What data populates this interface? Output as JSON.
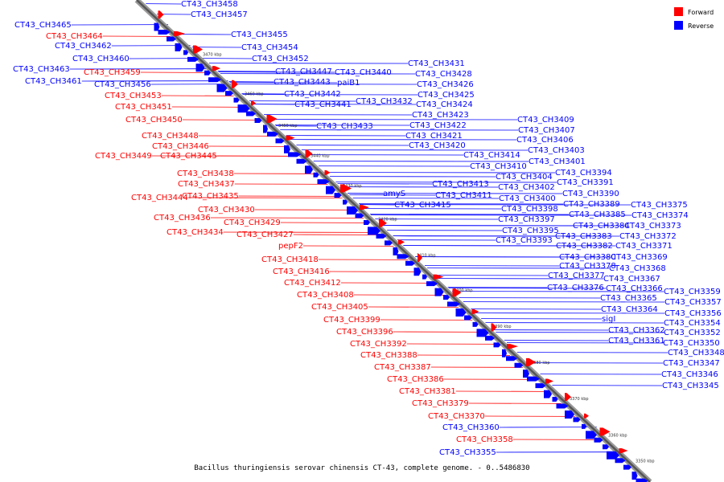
{
  "legend": [
    {
      "label": "Forward",
      "color": "#ff0000"
    },
    {
      "label": "Reverse",
      "color": "#0000ff"
    }
  ],
  "caption": "Bacillus thuringiensis serovar chinensis CT-43, complete genome. - 0..5486830",
  "backbone_ticks": [
    "3470 kbp",
    "3460 kbp",
    "3450 kbp",
    "3440 kbp",
    "3430 kbp",
    "3420 kbp",
    "3410 kbp",
    "3400 kbp",
    "3390 kbp",
    "3380 kbp",
    "3370 kbp",
    "3360 kbp",
    "3350 kbp"
  ],
  "reverse_labels": [
    "CT43_CH3458",
    "CT43_CH3457",
    "CT43_CH3465",
    "CT43_CH3455",
    "CT43_CH3454",
    "CT43_CH3452",
    "CT43_CH3462",
    "CT43_CH3460",
    "CT43_CH3463",
    "CT43_CH3461",
    "CT43_CH3456",
    "CT43_CH3447",
    "CT43_CH3440",
    "CT43_CH3443",
    "paiB1",
    "CT43_CH3442",
    "CT43_CH3441",
    "CT43_CH3432",
    "CT43_CH3433",
    "CT43_CH3431",
    "CT43_CH3428",
    "CT43_CH3426",
    "CT43_CH3425",
    "CT43_CH3424",
    "CT43_CH3423",
    "CT43_CH3422",
    "CT43_CH3421",
    "CT43_CH3420",
    "CT43_CH3414",
    "CT43_CH3410",
    "CT43_CH3413",
    "CT43_CH3411",
    "amyS",
    "CT43_CH3415",
    "CT43_CH3409",
    "CT43_CH3407",
    "CT43_CH3406",
    "CT43_CH3403",
    "CT43_CH3401",
    "CT43_CH3404",
    "CT43_CH3402",
    "CT43_CH3400",
    "CT43_CH3398",
    "CT43_CH3397",
    "CT43_CH3395",
    "CT43_CH3393",
    "CT43_CH3394",
    "CT43_CH3391",
    "CT43_CH3390",
    "CT43_CH3389",
    "CT43_CH3385",
    "CT43_CH3384",
    "CT43_CH3383",
    "CT43_CH3382",
    "CT43_CH3380",
    "CT43_CH3378",
    "CT43_CH3377",
    "CT43_CH3376",
    "CT43_CH3375",
    "CT43_CH3374",
    "CT43_CH3373",
    "CT43_CH3372",
    "CT43_CH3371",
    "CT43_CH3369",
    "CT43_CH3368",
    "CT43_CH3367",
    "CT43_CH3366",
    "CT43_CH3365",
    "CT43_CH3364",
    "sigI",
    "CT43_CH3362",
    "CT43_CH3361",
    "CT43_CH3359",
    "CT43_CH3357",
    "CT43_CH3356",
    "CT43_CH3354",
    "CT43_CH3352",
    "CT43_CH3350",
    "CT43_CH3348",
    "CT43_CH3347",
    "CT43_CH3346",
    "CT43_CH3345",
    "CT43_CH3360",
    "CT43_CH3355"
  ],
  "forward_labels": [
    "CT43_CH3464",
    "CT43_CH3459",
    "CT43_CH3453",
    "CT43_CH3451",
    "CT43_CH3450",
    "CT43_CH3448",
    "CT43_CH3446",
    "CT43_CH3449",
    "CT43_CH3445",
    "CT43_CH3438",
    "CT43_CH3437",
    "CT43_CH3444",
    "CT43_CH3435",
    "CT43_CH3430",
    "CT43_CH3436",
    "CT43_CH3429",
    "CT43_CH3434",
    "CT43_CH3427",
    "pepF2",
    "CT43_CH3418",
    "CT43_CH3416",
    "CT43_CH3412",
    "CT43_CH3408",
    "CT43_CH3405",
    "CT43_CH3399",
    "CT43_CH3396",
    "CT43_CH3392",
    "CT43_CH3388",
    "CT43_CH3387",
    "CT43_CH3386",
    "CT43_CH3381",
    "CT43_CH3379",
    "CT43_CH3370",
    "CT43_CH3358"
  ]
}
